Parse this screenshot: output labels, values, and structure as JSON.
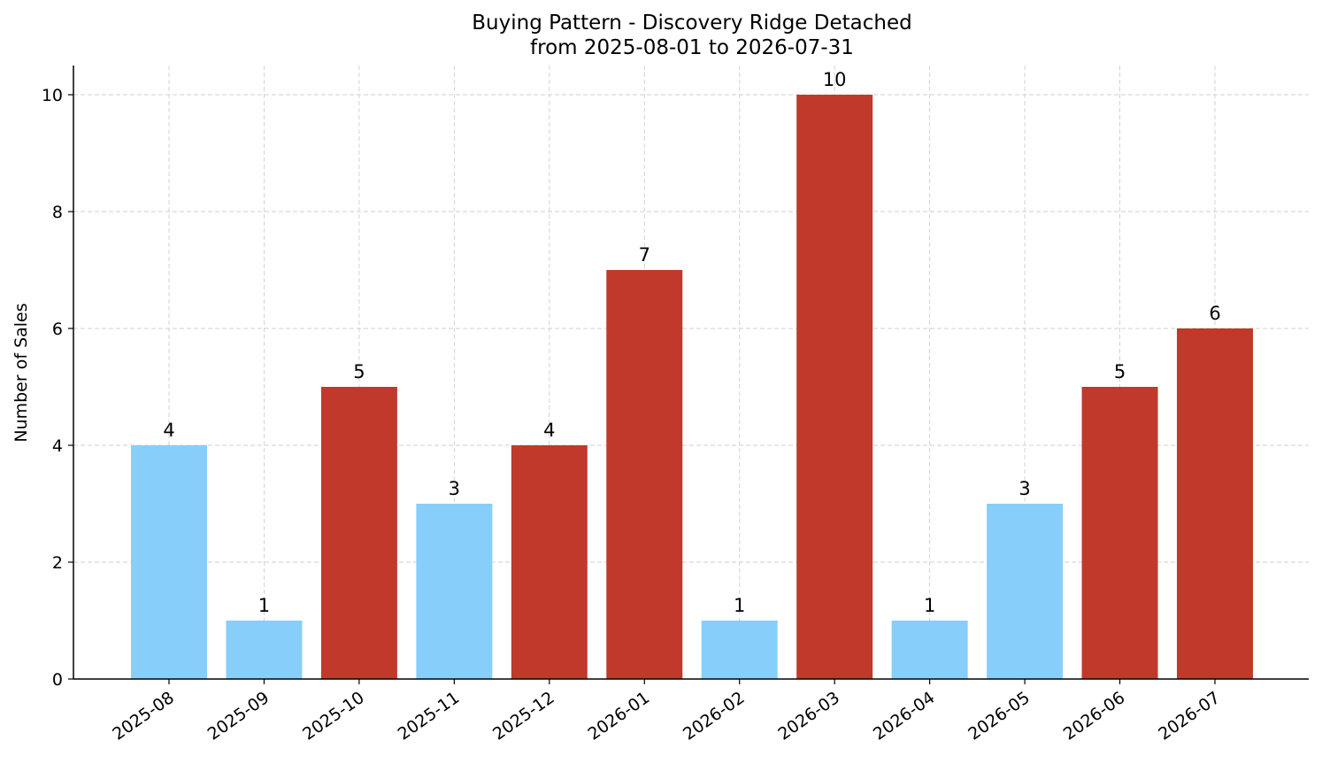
{
  "chart_data": {
    "type": "bar",
    "title": "Buying Pattern - Discovery Ridge Detached",
    "subtitle": "from 2025-08-01 to 2026-07-31",
    "xlabel": "",
    "ylabel": "Number of Sales",
    "categories": [
      "2025-08",
      "2025-09",
      "2025-10",
      "2025-11",
      "2025-12",
      "2026-01",
      "2026-02",
      "2026-03",
      "2026-04",
      "2026-05",
      "2026-06",
      "2026-07"
    ],
    "values": [
      4,
      1,
      5,
      3,
      4,
      7,
      1,
      10,
      1,
      3,
      5,
      6
    ],
    "bar_colors": [
      "#87cefa",
      "#87cefa",
      "#c0392b",
      "#87cefa",
      "#c0392b",
      "#c0392b",
      "#87cefa",
      "#c0392b",
      "#87cefa",
      "#87cefa",
      "#c0392b",
      "#c0392b"
    ],
    "ylim": [
      0,
      10.5
    ],
    "yticks": [
      0,
      2,
      4,
      6,
      8,
      10
    ],
    "grid": true,
    "legend": "none"
  }
}
